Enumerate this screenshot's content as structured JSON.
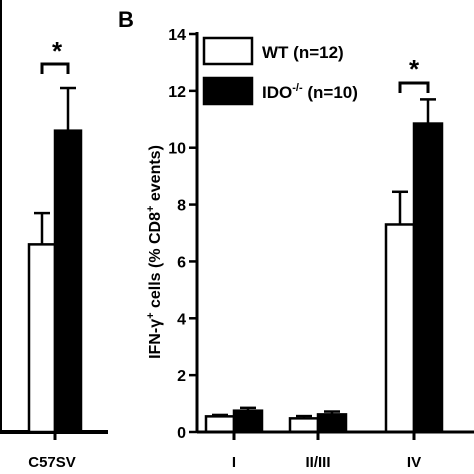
{
  "chart_data": [
    {
      "type": "bar",
      "panel_label": "",
      "categories": [
        "C57SV"
      ],
      "series": [
        {
          "name": "WT (n=12)",
          "values": [
            6.6
          ],
          "errors": [
            1.1
          ],
          "color": "#ffffff"
        },
        {
          "name": "IDO",
          "values": [
            10.6
          ],
          "errors": [
            1.5
          ],
          "color": "#000000"
        }
      ],
      "significance": [
        {
          "category": "C57SV",
          "label": "*"
        }
      ],
      "ylim": [
        0,
        14
      ]
    },
    {
      "type": "bar",
      "panel_label": "B",
      "categories": [
        "I",
        "II/III",
        "IV"
      ],
      "series": [
        {
          "name": "WT (n=12)",
          "values": [
            0.55,
            0.48,
            7.3
          ],
          "errors": [
            0.05,
            0.08,
            1.15
          ],
          "color": "#ffffff"
        },
        {
          "name": "IDO-/- (n=10)",
          "values": [
            0.75,
            0.62,
            10.85
          ],
          "errors": [
            0.1,
            0.1,
            0.85
          ],
          "color": "#000000"
        }
      ],
      "significance": [
        {
          "category": "IV",
          "label": "*"
        }
      ],
      "ylabel": "IFN-γ+ cells (% CD8+ events)",
      "ylim": [
        0,
        14
      ],
      "yticks": [
        0,
        2,
        4,
        6,
        8,
        10,
        12,
        14
      ],
      "legend_position": "top-left",
      "legend": {
        "wt_label": "WT (n=12)",
        "ido_prefix": "IDO",
        "ido_sup": "-/-",
        "ido_suffix": " (n=10)"
      },
      "ylabel_parts": {
        "p1": "IFN-γ",
        "sup1": "+",
        "p2": " cells (% CD8",
        "sup2": "+",
        "p3": " events)"
      }
    }
  ]
}
